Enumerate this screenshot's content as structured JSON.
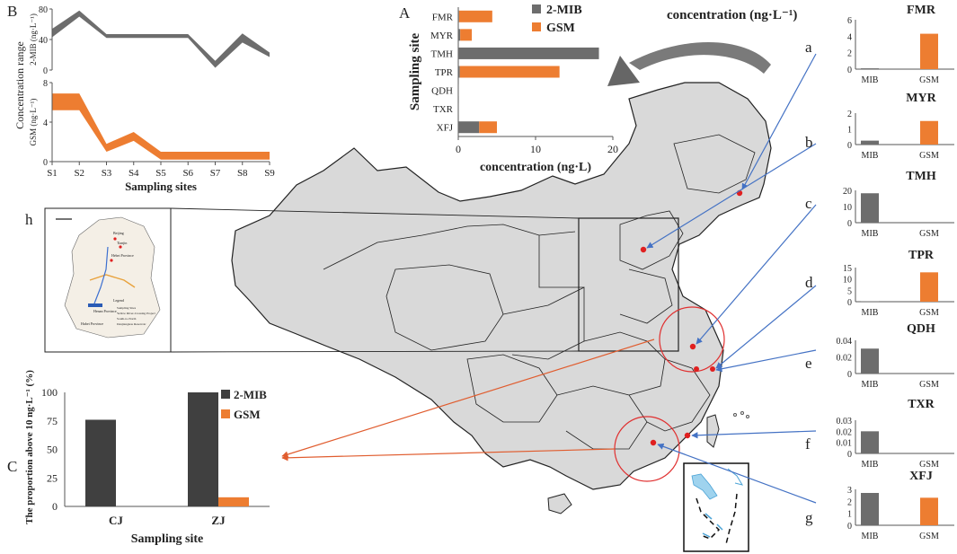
{
  "panel_letters": {
    "A": "A",
    "B": "B",
    "C": "C",
    "h": "h",
    "a": "a",
    "b": "b",
    "c": "c",
    "d": "d",
    "e": "e",
    "f": "f",
    "g": "g"
  },
  "colors": {
    "mib": "#6d6d6d",
    "gsm": "#ed7d31",
    "dark": "#404040",
    "map_fill": "#d9d9d9",
    "arrow_blue": "#4472c4",
    "arrow_orange": "#e05c2e",
    "circle_red": "#e03030"
  },
  "map_header": "concentration (ng·L⁻¹)",
  "chart_data": [
    {
      "id": "A",
      "type": "bar",
      "orientation": "horizontal",
      "stacked": true,
      "categories": [
        "FMR",
        "MYR",
        "TMH",
        "TPR",
        "QDH",
        "TXR",
        "XFJ"
      ],
      "series": [
        {
          "name": "2-MIB",
          "values": [
            0.1,
            0.25,
            18.2,
            0.2,
            0.03,
            0.02,
            2.7
          ]
        },
        {
          "name": "GSM",
          "values": [
            4.3,
            1.5,
            0,
            12.9,
            0,
            0,
            2.3
          ]
        }
      ],
      "xlabel": "concentration (ng·L)",
      "ylabel": "Sampling site",
      "xlim": [
        0,
        20
      ],
      "xticks": [
        "0",
        "10",
        "20"
      ],
      "legend": "top-right"
    },
    {
      "id": "B",
      "type": "area",
      "ylabel": "Concentration range",
      "xlabel": "Sampling sites",
      "categories": [
        "S1",
        "S2",
        "S3",
        "S4",
        "S5",
        "S6",
        "S7",
        "S8",
        "S9"
      ],
      "top": {
        "ylabel": "2-MIB (ng·L⁻¹)",
        "ylim": [
          0,
          80
        ],
        "yticks": [
          "0",
          "40",
          "80"
        ],
        "lower": [
          43,
          70,
          42,
          42,
          42,
          42,
          3,
          36,
          17
        ],
        "upper": [
          54,
          78,
          47,
          47,
          47,
          47,
          12,
          48,
          23
        ]
      },
      "bottom": {
        "ylabel": "GSM (ng·L⁻¹)",
        "ylim": [
          0,
          8
        ],
        "yticks": [
          "0",
          "4",
          "8"
        ],
        "lower": [
          5.2,
          5.2,
          1,
          2.1,
          0.2,
          0.2,
          0.2,
          0.2,
          0.2
        ],
        "upper": [
          6.9,
          6.9,
          1.8,
          3,
          1,
          1,
          1,
          1,
          1
        ]
      }
    },
    {
      "id": "C",
      "type": "bar",
      "categories": [
        "CJ",
        "ZJ"
      ],
      "series": [
        {
          "name": "2-MIB",
          "values": [
            76,
            100
          ]
        },
        {
          "name": "GSM",
          "values": [
            0,
            8
          ]
        }
      ],
      "ylabel": "The proportion  above 10 ng·L⁻¹ (%)",
      "xlabel": "Sampling site",
      "ylim": [
        0,
        100
      ],
      "yticks": [
        "0",
        "25",
        "50",
        "75",
        "100"
      ],
      "legend": "top-right"
    },
    {
      "id": "a",
      "title": "FMR",
      "type": "bar",
      "categories": [
        "MIB",
        "GSM"
      ],
      "values": [
        0.1,
        4.3
      ],
      "ylim": [
        0,
        6
      ],
      "yticks": [
        "0",
        "2",
        "4",
        "6"
      ]
    },
    {
      "id": "b",
      "title": "MYR",
      "type": "bar",
      "categories": [
        "MIB",
        "GSM"
      ],
      "values": [
        0.25,
        1.5
      ],
      "ylim": [
        0,
        2
      ],
      "yticks": [
        "0",
        "1",
        "2"
      ]
    },
    {
      "id": "c",
      "title": "TMH",
      "type": "bar",
      "categories": [
        "MIB",
        "GSM"
      ],
      "values": [
        18.2,
        0
      ],
      "ylim": [
        0,
        20
      ],
      "yticks": [
        "0",
        "10",
        "20"
      ]
    },
    {
      "id": "d",
      "title": "TPR",
      "type": "bar",
      "categories": [
        "MIB",
        "GSM"
      ],
      "values": [
        0.2,
        12.9
      ],
      "ylim": [
        0,
        15
      ],
      "yticks": [
        "0",
        "5",
        "10",
        "15"
      ]
    },
    {
      "id": "e",
      "title": "QDH",
      "type": "bar",
      "categories": [
        "MIB",
        "GSM"
      ],
      "values": [
        0.03,
        0
      ],
      "ylim": [
        0,
        0.04
      ],
      "yticks": [
        "0",
        "0.02",
        "0.04"
      ]
    },
    {
      "id": "f",
      "title": "TXR",
      "type": "bar",
      "categories": [
        "MIB",
        "GSM"
      ],
      "values": [
        0.02,
        0
      ],
      "ylim": [
        0,
        0.03
      ],
      "yticks": [
        "0",
        "0.01",
        "0.02",
        "0.03"
      ]
    },
    {
      "id": "g",
      "title": "XFJ",
      "type": "bar",
      "categories": [
        "MIB",
        "GSM"
      ],
      "values": [
        2.7,
        2.3
      ],
      "ylim": [
        0,
        3
      ],
      "yticks": [
        "0",
        "1",
        "2",
        "3"
      ]
    }
  ]
}
